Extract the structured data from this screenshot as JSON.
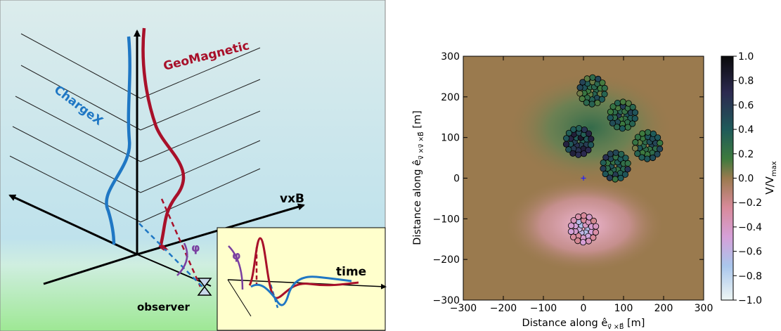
{
  "left_panel": {
    "label_chargex": "ChargeX",
    "label_geomagnetic": "GeoMagnetic",
    "label_vxb": "vxB",
    "label_phi": "φ",
    "label_observer": "observer",
    "inset": {
      "label_phi": "φ",
      "label_time": "time"
    },
    "colors": {
      "chargex": "#1f77c4",
      "geomagnetic": "#a8102a",
      "phi": "#7a3fa0"
    }
  },
  "chart_data": {
    "type": "heatmap",
    "xlabel_prefix": "Distance along ê",
    "xlabel_sub": "v⃗ ×B⃗",
    "xlabel_unit": " [m]",
    "ylabel_prefix": "Distance along ê",
    "ylabel_sub": "v⃗ ×v⃗ ×B⃗",
    "ylabel_unit": " [m]",
    "xlim": [
      -300,
      300
    ],
    "ylim": [
      -300,
      300
    ],
    "xticks": [
      -300,
      -200,
      -100,
      0,
      100,
      200,
      300
    ],
    "yticks": [
      -300,
      -200,
      -100,
      0,
      100,
      200,
      300
    ],
    "colorbar": {
      "label_main": "V/V",
      "label_sub": "max",
      "range": [
        -1.0,
        1.0
      ],
      "ticks": [
        1.0,
        0.8,
        0.6,
        0.4,
        0.2,
        0.0,
        -0.2,
        -0.4,
        -0.6,
        -0.8,
        -1.0
      ],
      "tick_labels": [
        "1.0",
        "0.8",
        "0.6",
        "0.4",
        "0.2",
        "0.0",
        "−0.2",
        "−0.4",
        "−0.6",
        "−0.8",
        "−1.0"
      ]
    },
    "antenna_clusters": [
      {
        "center": [
          22,
          215
        ],
        "value": 0.3
      },
      {
        "center": [
          98,
          155
        ],
        "value": 0.35
      },
      {
        "center": [
          160,
          80
        ],
        "value": 0.3
      },
      {
        "center": [
          -12,
          90
        ],
        "value": 0.6
      },
      {
        "center": [
          80,
          30
        ],
        "value": 0.45
      },
      {
        "center": [
          0,
          -125
        ],
        "value": -0.45
      }
    ],
    "core_marker": [
      0,
      0
    ]
  }
}
